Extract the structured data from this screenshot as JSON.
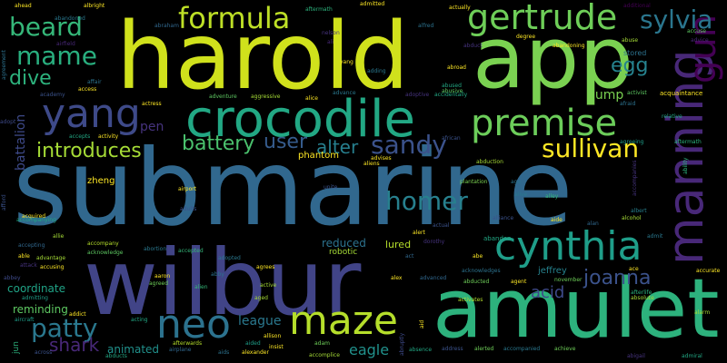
{
  "words": {
    "submarine": "submarine",
    "harold": "harold",
    "wilbur": "wilbur",
    "app": "app",
    "amulet": "amulet",
    "crocodile": "crocodile",
    "manning": "manning",
    "cynthia": "cynthia",
    "premise": "premise",
    "gertrude": "gertrude",
    "formula": "formula",
    "maze": "maze",
    "yang": "yang",
    "neo": "neo",
    "beard": "beard",
    "mame": "mame",
    "gun": "gun",
    "patty": "patty",
    "sylvia": "sylvia",
    "sandy": "sandy",
    "sullivan": "sullivan",
    "homer": "homer",
    "joanna": "joanna",
    "introduces": "introduces",
    "battery": "battery",
    "dive": "dive",
    "egg": "egg",
    "user": "user",
    "alter": "alter",
    "shark": "shark",
    "acid": "acid",
    "pen": "pen",
    "dump": "dump",
    "battalion": "battalion",
    "league": "league",
    "eagle": "eagle",
    "phantom": "phantom",
    "reduced": "reduced",
    "lured": "lured",
    "coordinate": "coordinate",
    "reminding": "reminding",
    "animated": "animated",
    "robotic": "robotic",
    "jeffrey": "jeffrey",
    "zheng": "zheng",
    "stored": "stored",
    "abandon": "abandon",
    "accompanied": "accompanied",
    "address": "address",
    "alerted": "alerted",
    "absence": "absence",
    "abduction": "abduction",
    "plantation": "plantation",
    "aftermath": "aftermath",
    "additional": "additional",
    "abandoned": "abandoned",
    "abraham": "abraham",
    "airfield": "airfield",
    "adopted": "adopted",
    "accepted": "accepted",
    "accompany": "accompany",
    "acknowledge": "acknowledge",
    "accusing": "accusing",
    "advantage": "advantage",
    "attack": "attack",
    "abbey": "abbey",
    "admitting": "admitting",
    "agreed": "agreed",
    "aaron": "aaron",
    "alien": "alien",
    "airplane": "airplane",
    "aids": "aids",
    "alexander": "alexander",
    "accomplice": "accomplice",
    "abducts": "abducts",
    "across": "across",
    "aftermath2": "afterwards",
    "abigail": "abigail",
    "admiral": "admiral",
    "alarm": "alarm",
    "achieve": "achieve",
    "adventure": "adventure",
    "aggressive": "aggressive",
    "alice": "alice",
    "advance": "advance",
    "actress": "actress",
    "activity": "activity",
    "accepts": "accepts",
    "academy": "academy",
    "access": "access",
    "affair": "affair",
    "agreement": "agreement",
    "abuse": "abuse",
    "acquaintance": "acquaintance",
    "activist": "activist",
    "advice": "advice",
    "accuse": "accuse",
    "relative": "relative",
    "aftermath3": "aftermath",
    "agreeing": "agreeing",
    "ability": "ability",
    "accompanies": "accompanies",
    "albert": "albert",
    "alan": "alan",
    "aide": "aide",
    "alley": "alley",
    "alive": "alive",
    "age": "age",
    "alliance": "alliance",
    "alcohol": "alcohol",
    "admit": "admit",
    "advanced": "advanced",
    "alex": "alex",
    "abducted": "abducted",
    "ace": "ace",
    "afterlife": "afterlife",
    "absolute": "absolute",
    "accurate": "accurate",
    "adopt": "adopt",
    "afraid": "afraid",
    "actual": "actual",
    "alert": "alert",
    "dorothy": "dorothy",
    "allie": "allie",
    "abortion": "abortion",
    "abby": "abby",
    "acting": "acting",
    "allison": "allison",
    "aged": "aged",
    "aided": "aided",
    "adam": "adam",
    "airport": "airport",
    "unite": "unite",
    "insist": "insist",
    "act": "act",
    "abe": "abe",
    "nelson": "nelson",
    "yang2": "yang",
    "adding": "adding",
    "ali": "ali",
    "alfred": "alfred",
    "abused": "abused",
    "abusive": "abusive",
    "adoptive": "adoptive",
    "accidentally": "accidentally",
    "degree": "degree",
    "abandoning": "abandoning",
    "actually": "actually",
    "admitted": "admitted",
    "ahead": "ahead",
    "albright": "albright",
    "aircraft": "aircraft",
    "addict": "addict",
    "jun": "jun",
    "abroad": "abroad",
    "aliens": "aliens",
    "advises": "advises",
    "abruptly": "abruptly",
    "activates": "activates",
    "aid": "aid",
    "november": "november",
    "acknowledges": "acknowledges",
    "agent": "agent",
    "active": "active",
    "agrees": "agrees",
    "afford": "afford",
    "acquired": "acquired",
    "accompanying": "accompanying",
    "accepting": "accepting",
    "able": "able",
    "adults": "adults",
    "african": "african",
    "abduct": "abduct"
  }
}
